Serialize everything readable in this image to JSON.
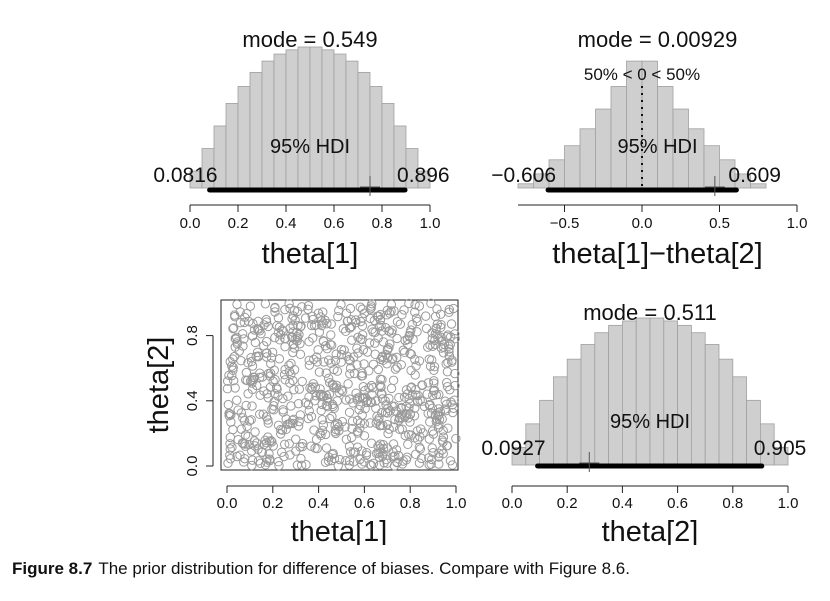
{
  "chart_data": [
    {
      "type": "bar",
      "subplot": "histogram-theta1",
      "xlabel": "theta[1]",
      "ylabel": "",
      "xlim": [
        0,
        1
      ],
      "xticks": [
        "0.0",
        "0.2",
        "0.4",
        "0.6",
        "0.8",
        "1.0"
      ],
      "bin_centers": [
        0.025,
        0.075,
        0.125,
        0.175,
        0.225,
        0.275,
        0.325,
        0.375,
        0.425,
        0.475,
        0.525,
        0.575,
        0.625,
        0.675,
        0.725,
        0.775,
        0.825,
        0.875,
        0.925,
        0.975
      ],
      "values": [
        0.12,
        0.28,
        0.44,
        0.6,
        0.72,
        0.82,
        0.9,
        0.95,
        0.98,
        1.0,
        1.0,
        0.98,
        0.95,
        0.9,
        0.82,
        0.72,
        0.6,
        0.44,
        0.28,
        0.12
      ],
      "mode_label": "mode = 0.549",
      "hdi_label": "95% HDI",
      "hdi": [
        0.0816,
        0.896
      ],
      "hdi_low_label": "0.0816",
      "hdi_high_label": "0.896",
      "marker_x": 0.75
    },
    {
      "type": "bar",
      "subplot": "histogram-difference",
      "xlabel": "theta[1]−theta[2]",
      "ylabel": "",
      "xlim": [
        -0.8,
        1.0
      ],
      "xticks": [
        "−0.5",
        "0.0",
        "0.5",
        "1.0"
      ],
      "xtick_values": [
        -0.5,
        0.0,
        0.5,
        1.0
      ],
      "bin_centers": [
        -0.75,
        -0.65,
        -0.55,
        -0.45,
        -0.35,
        -0.25,
        -0.15,
        -0.05,
        0.05,
        0.15,
        0.25,
        0.35,
        0.45,
        0.55,
        0.65,
        0.75
      ],
      "values": [
        0.03,
        0.1,
        0.2,
        0.3,
        0.42,
        0.56,
        0.72,
        0.9,
        0.9,
        0.72,
        0.56,
        0.42,
        0.3,
        0.2,
        0.1,
        0.03
      ],
      "mode_label": "mode = 0.00929",
      "comp_label": "50% < 0 < 50%",
      "comp_value": 0,
      "hdi_label": "95% HDI",
      "hdi": [
        -0.606,
        0.609
      ],
      "hdi_low_label": "−0.606",
      "hdi_high_label": "0.609",
      "marker_x": 0.47
    },
    {
      "type": "scatter",
      "subplot": "scatter-theta1-theta2",
      "xlabel": "theta[1]",
      "ylabel": "theta[2]",
      "xlim": [
        0,
        1
      ],
      "ylim": [
        0,
        1
      ],
      "xticks": [
        "0.0",
        "0.2",
        "0.4",
        "0.6",
        "0.8",
        "1.0"
      ],
      "yticks": [
        "0.0",
        "0.4",
        "0.8"
      ],
      "point_count": 800
    },
    {
      "type": "bar",
      "subplot": "histogram-theta2",
      "xlabel": "theta[2]",
      "ylabel": "",
      "xlim": [
        0,
        1
      ],
      "xticks": [
        "0.0",
        "0.2",
        "0.4",
        "0.6",
        "0.8",
        "1.0"
      ],
      "bin_centers": [
        0.025,
        0.075,
        0.125,
        0.175,
        0.225,
        0.275,
        0.325,
        0.375,
        0.425,
        0.475,
        0.525,
        0.575,
        0.625,
        0.675,
        0.725,
        0.775,
        0.825,
        0.875,
        0.925,
        0.975
      ],
      "values": [
        0.12,
        0.28,
        0.44,
        0.6,
        0.72,
        0.82,
        0.9,
        0.95,
        0.98,
        1.0,
        1.0,
        0.98,
        0.95,
        0.9,
        0.82,
        0.72,
        0.6,
        0.44,
        0.28,
        0.12
      ],
      "mode_label": "mode = 0.511",
      "hdi_label": "95% HDI",
      "hdi": [
        0.0927,
        0.905
      ],
      "hdi_low_label": "0.0927",
      "hdi_high_label": "0.905",
      "marker_x": 0.28
    }
  ],
  "caption": {
    "label": "Figure 8.7",
    "text": "The prior distribution for difference of biases. Compare with Figure 8.6."
  },
  "colors": {
    "bar_fill": "#cfcfcf",
    "bar_stroke": "#a0a0a0",
    "hdi_line": "#000000",
    "point_stroke": "#9a9a9a",
    "axis": "#222222"
  }
}
